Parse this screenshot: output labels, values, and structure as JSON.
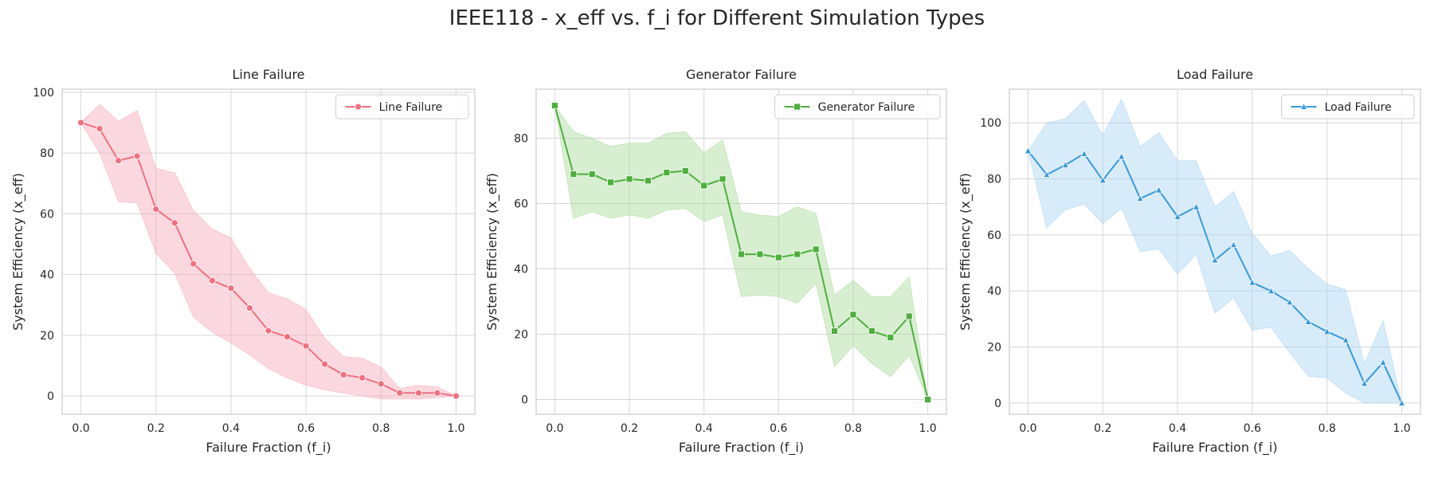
{
  "figure": {
    "title": "IEEE118 - x_eff vs. f_i for Different Simulation Types"
  },
  "chart_data": [
    {
      "type": "line",
      "title": "Line Failure",
      "xlabel": "Failure Fraction (f_i)",
      "ylabel": "System Efficiency (x_eff)",
      "xlim": [
        -0.05,
        1.05
      ],
      "ylim": [
        -6,
        101
      ],
      "xticks": [
        0,
        0.2,
        0.4,
        0.6,
        0.8,
        1.0
      ],
      "xtick_labels": [
        "0.0",
        "0.2",
        "0.4",
        "0.6",
        "0.8",
        "1.0"
      ],
      "yticks": [
        0,
        20,
        40,
        60,
        80,
        100
      ],
      "ytick_labels": [
        "0",
        "20",
        "40",
        "60",
        "80",
        "100"
      ],
      "grid": true,
      "legend_position": "top-right",
      "color": "#f0707f",
      "band_color": "#f7a8b8",
      "marker": "circle",
      "series": [
        {
          "name": "Line Failure",
          "x": [
            0,
            0.05,
            0.1,
            0.15,
            0.2,
            0.25,
            0.3,
            0.35,
            0.4,
            0.45,
            0.5,
            0.55,
            0.6,
            0.65,
            0.7,
            0.75,
            0.8,
            0.85,
            0.9,
            0.95,
            1.0
          ],
          "y": [
            90,
            88,
            77.5,
            79,
            61.5,
            57,
            43.5,
            38,
            35.5,
            29,
            21.5,
            19.5,
            16.5,
            10.5,
            7,
            6,
            4,
            1,
            1,
            1,
            0
          ],
          "y_lower": [
            90,
            80,
            64,
            63.5,
            47,
            40.5,
            26,
            21,
            17.5,
            13.5,
            9,
            6,
            3.5,
            2,
            1,
            0,
            -1,
            -1,
            -1,
            -0.5,
            0
          ],
          "y_upper": [
            90,
            96,
            90.5,
            94,
            75,
            73.5,
            61,
            55,
            52,
            42,
            34,
            32,
            28.5,
            19,
            13,
            12.5,
            9.5,
            2.5,
            3.5,
            3,
            0
          ]
        }
      ]
    },
    {
      "type": "line",
      "title": "Generator Failure",
      "xlabel": "Failure Fraction (f_i)",
      "ylabel": "System Efficiency (x_eff)",
      "xlim": [
        -0.05,
        1.05
      ],
      "ylim": [
        -4.5,
        95
      ],
      "xticks": [
        0,
        0.2,
        0.4,
        0.6,
        0.8,
        1.0
      ],
      "xtick_labels": [
        "0.0",
        "0.2",
        "0.4",
        "0.6",
        "0.8",
        "1.0"
      ],
      "yticks": [
        0,
        20,
        40,
        60,
        80
      ],
      "ytick_labels": [
        "0",
        "20",
        "40",
        "60",
        "80"
      ],
      "grid": true,
      "legend_position": "top-right",
      "color": "#4daf3c",
      "band_color": "#a9d99a",
      "marker": "square",
      "series": [
        {
          "name": "Generator Failure",
          "x": [
            0,
            0.05,
            0.1,
            0.15,
            0.2,
            0.25,
            0.3,
            0.35,
            0.4,
            0.45,
            0.5,
            0.55,
            0.6,
            0.65,
            0.7,
            0.75,
            0.8,
            0.85,
            0.9,
            0.95,
            1.0
          ],
          "y": [
            90,
            69,
            69,
            66.5,
            67.5,
            67,
            69.5,
            70,
            65.5,
            67.5,
            44.5,
            44.5,
            43.5,
            44.5,
            46,
            21,
            26,
            21,
            19,
            25.5,
            0
          ],
          "y_lower": [
            90,
            55.5,
            57.5,
            55.5,
            56.5,
            55.5,
            58,
            58.5,
            54.5,
            56.5,
            31.5,
            32,
            31.5,
            29.5,
            35.5,
            10,
            16.5,
            11,
            7,
            13.5,
            0
          ],
          "y_upper": [
            90,
            82,
            80,
            77.5,
            78.5,
            78.5,
            81.5,
            82,
            75.5,
            79.5,
            57.5,
            56.5,
            56,
            59,
            57,
            32,
            36.5,
            31.5,
            31.5,
            37.5,
            0
          ]
        }
      ]
    },
    {
      "type": "line",
      "title": "Load Failure",
      "xlabel": "Failure Fraction (f_i)",
      "ylabel": "System Efficiency (x_eff)",
      "xlim": [
        -0.05,
        1.05
      ],
      "ylim": [
        -4,
        112
      ],
      "xticks": [
        0,
        0.2,
        0.4,
        0.6,
        0.8,
        1.0
      ],
      "xtick_labels": [
        "0.0",
        "0.2",
        "0.4",
        "0.6",
        "0.8",
        "1.0"
      ],
      "yticks": [
        0,
        20,
        40,
        60,
        80,
        100
      ],
      "ytick_labels": [
        "0",
        "20",
        "40",
        "60",
        "80",
        "100"
      ],
      "grid": true,
      "legend_position": "top-right",
      "color": "#3a9ad9",
      "band_color": "#a9d3f2",
      "marker": "triangle",
      "series": [
        {
          "name": "Load Failure",
          "x": [
            0,
            0.05,
            0.1,
            0.15,
            0.2,
            0.25,
            0.3,
            0.35,
            0.4,
            0.45,
            0.5,
            0.55,
            0.6,
            0.65,
            0.7,
            0.75,
            0.8,
            0.85,
            0.9,
            0.95,
            1.0
          ],
          "y": [
            90,
            81.5,
            85,
            89,
            79.5,
            88,
            73,
            76,
            66.5,
            70,
            51,
            56.5,
            43,
            40,
            36,
            29,
            25.5,
            22.5,
            7,
            14.5,
            0
          ],
          "y_lower": [
            90,
            62.5,
            69,
            71,
            64,
            69.5,
            54,
            55,
            46,
            53,
            32,
            37.5,
            26,
            27,
            18,
            9.5,
            9,
            3.5,
            0,
            0,
            0
          ],
          "y_upper": [
            90,
            100,
            101.5,
            108,
            95.5,
            108.5,
            91.5,
            96.5,
            86.5,
            86.5,
            70,
            75.5,
            60.5,
            52.5,
            54.5,
            48,
            42.5,
            40.5,
            14,
            29.5,
            0
          ]
        }
      ]
    }
  ]
}
